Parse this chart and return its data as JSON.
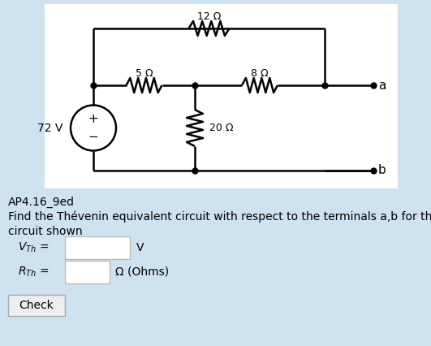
{
  "bg_color": "#cfe2f0",
  "circuit_bg": "#ffffff",
  "title_label": "AP4.16_9ed",
  "description_line1": "Find the Thévenin equivalent circuit with respect to the terminals a,b for the",
  "description_line2": "circuit shown",
  "v_unit": "V",
  "r_unit": "Ω (Ohms)",
  "check_label": "Check",
  "resistor_12": "12 Ω",
  "resistor_5": "5 Ω",
  "resistor_8": "8 Ω",
  "resistor_20": "20 Ω",
  "voltage_label": "72 V",
  "terminal_a": "a",
  "terminal_b": "b",
  "wire_lw": 1.8,
  "res_lw": 1.8,
  "dot_size": 5
}
